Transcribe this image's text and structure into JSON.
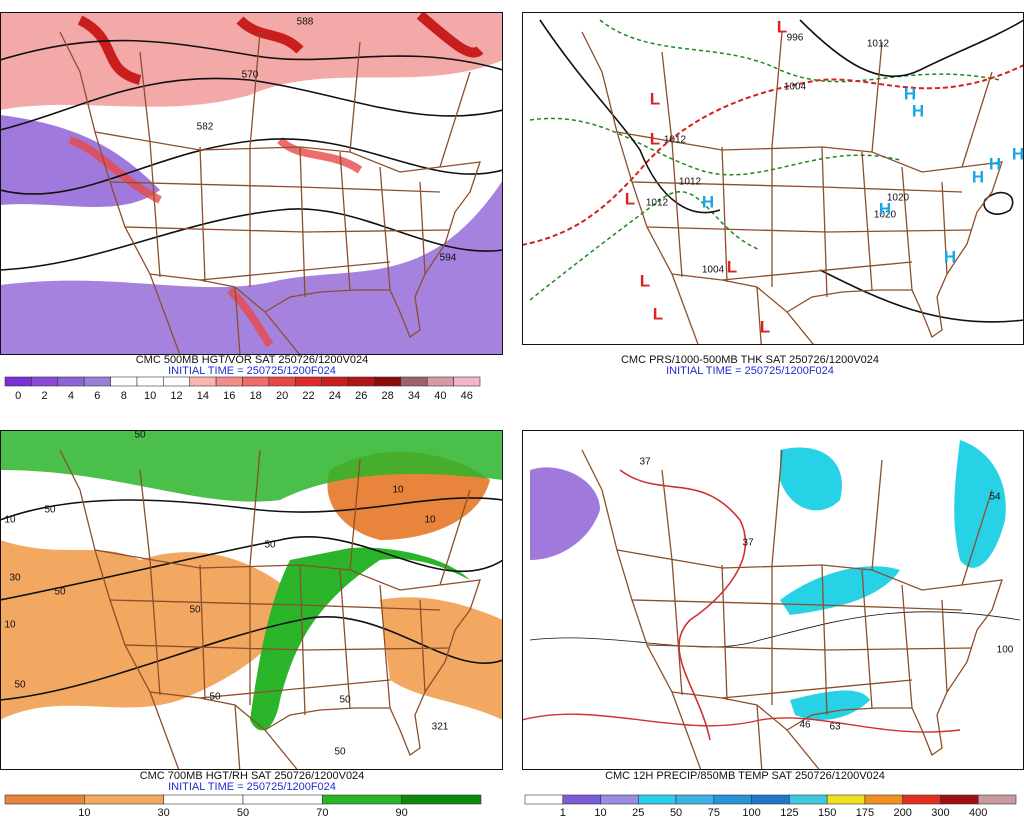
{
  "panels": [
    {
      "title": "CMC 500MB HGT/VOR SAT 250726/1200V024",
      "initial": "INITIAL TIME = 250725/1200F024",
      "colorbar": {
        "labels": [
          "0",
          "2",
          "4",
          "6",
          "8",
          "10",
          "12",
          "14",
          "16",
          "18",
          "20",
          "22",
          "24",
          "26",
          "28",
          "34",
          "40",
          "46"
        ],
        "colors": [
          "#7b2fd6",
          "#8a4ad8",
          "#8e63d6",
          "#9a7ed8",
          "#ffffff",
          "#ffffff",
          "#ffffff",
          "#f9b4b4",
          "#f48c8c",
          "#ef6a6a",
          "#e84848",
          "#de2a2a",
          "#c81e1e",
          "#b01414",
          "#8c0a0a",
          "#a06070",
          "#d69aa6",
          "#f4b6c8"
        ]
      },
      "labels": [
        "588",
        "570",
        "582",
        "594"
      ]
    },
    {
      "title": "CMC PRS/1000-500MB THK SAT 250726/1200V024",
      "initial": "INITIAL TIME = 250725/1200F024",
      "labels": [
        "996",
        "1012",
        "1004",
        "1012",
        "1012",
        "1012",
        "1020",
        "1020",
        "1004",
        "L",
        "L",
        "L",
        "L",
        "L",
        "L",
        "L",
        "L",
        "H",
        "H",
        "H",
        "H",
        "H",
        "H",
        "H",
        "H"
      ]
    },
    {
      "title": "CMC 700MB HGT/RH SAT 250726/1200V024",
      "initial": "INITIAL TIME = 250725/1200F024",
      "colorbar": {
        "labels": [
          "10",
          "30",
          "50",
          "70",
          "90"
        ],
        "colors": [
          "#e9843c",
          "#f3a862",
          "#ffffff",
          "#ffffff",
          "#2ab42a",
          "#0a8a0a"
        ]
      },
      "labels": [
        "50",
        "10",
        "50",
        "50",
        "10",
        "10",
        "50",
        "50",
        "30",
        "10",
        "50",
        "50",
        "50",
        "321",
        "50"
      ]
    },
    {
      "title": "CMC 12H PRECIP/850MB TEMP SAT 250726/1200V024",
      "colorbar": {
        "labels": [
          "1",
          "10",
          "25",
          "50",
          "75",
          "100",
          "125",
          "150",
          "175",
          "200",
          "300",
          "400"
        ],
        "colors": [
          "#ffffff",
          "#7b5cd6",
          "#9a8ce0",
          "#28d2e6",
          "#3cb4e6",
          "#2894dc",
          "#1e78c8",
          "#40c8e0",
          "#f0e020",
          "#f09020",
          "#e03020",
          "#a01010",
          "#c89aa0"
        ]
      },
      "labels": [
        "37",
        "46",
        "63",
        "54",
        "100",
        "37"
      ]
    }
  ]
}
